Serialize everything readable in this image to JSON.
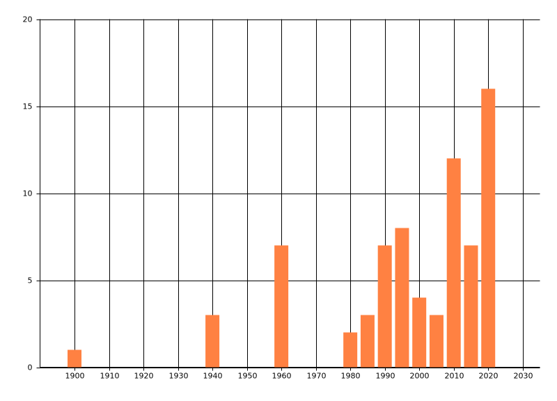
{
  "chart_data": {
    "type": "bar",
    "x": [
      1900,
      1940,
      1960,
      1980,
      1985,
      1990,
      1995,
      2000,
      2005,
      2010,
      2015,
      2020
    ],
    "values": [
      1,
      3,
      7,
      2,
      3,
      7,
      8,
      4,
      3,
      12,
      7,
      16
    ],
    "color": "#ff8142",
    "xlim": [
      1890,
      2035
    ],
    "xticks": [
      1900,
      1910,
      1920,
      1930,
      1940,
      1950,
      1960,
      1970,
      1980,
      1990,
      2000,
      2010,
      2020,
      2030
    ],
    "ylim": [
      0,
      20
    ],
    "yticks": [
      0,
      5,
      10,
      15,
      20
    ],
    "grid": true
  }
}
